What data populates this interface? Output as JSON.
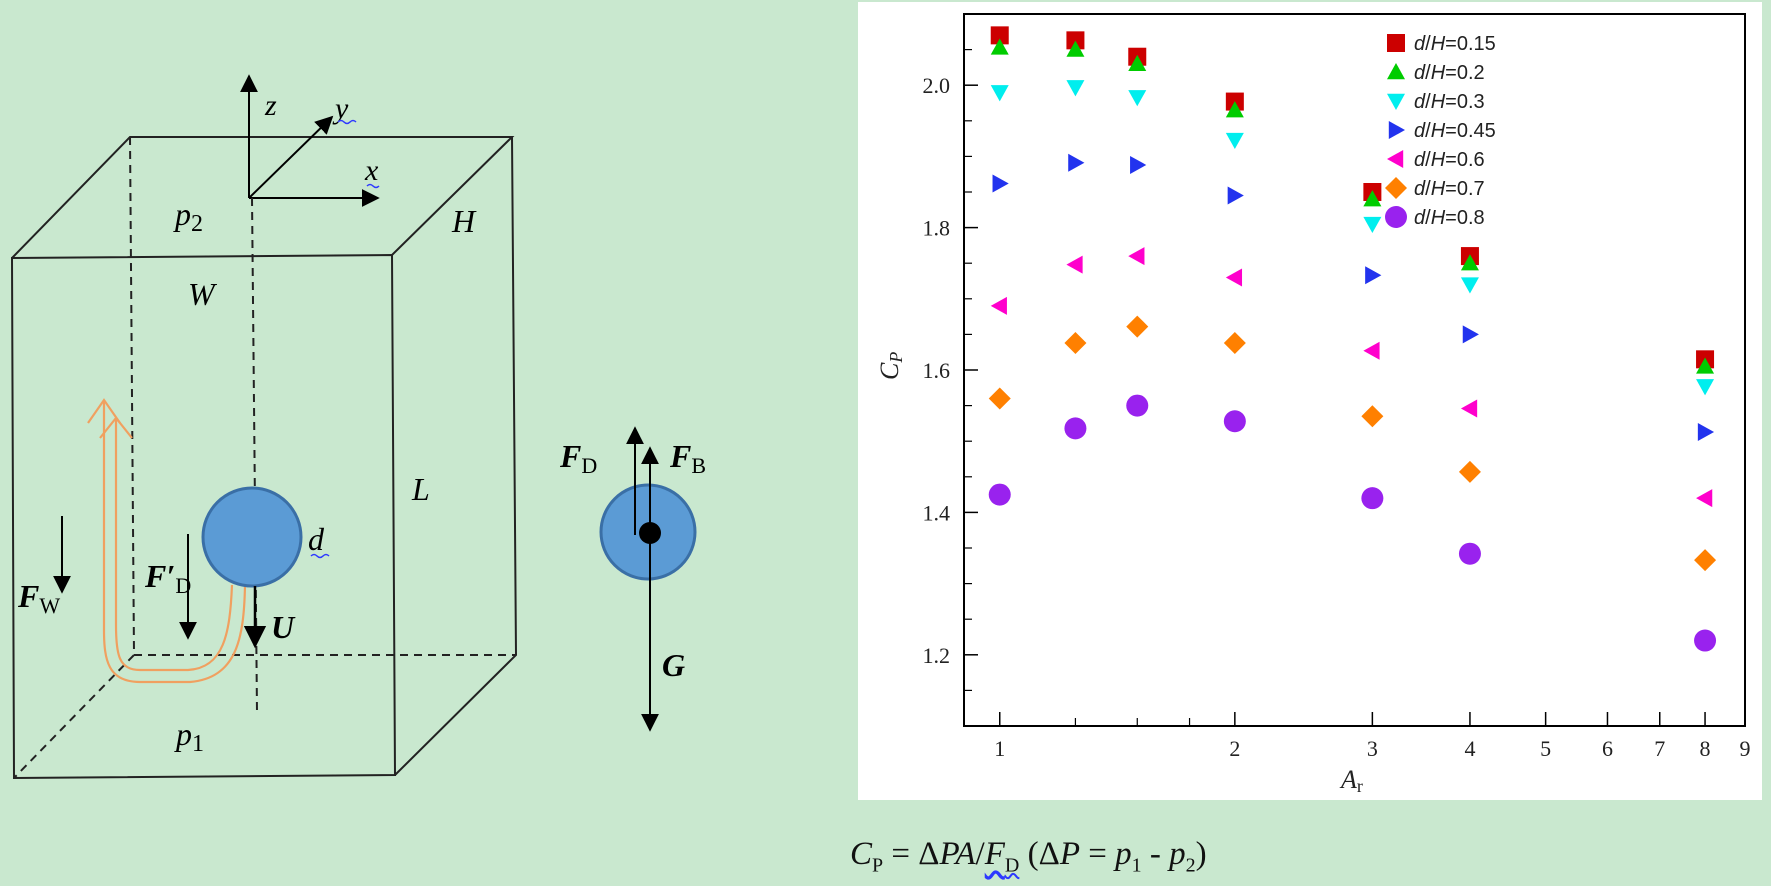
{
  "schematic": {
    "axis_z": "z",
    "axis_y": "y",
    "axis_x": "x",
    "p2": "p",
    "p2_sub": "2",
    "H": "H",
    "W": "W",
    "L": "L",
    "d": "d",
    "p1": "p",
    "p1_sub": "1",
    "Fw": "F",
    "Fw_sub": "W",
    "FD_prime": "F′",
    "FD_prime_sub": "D",
    "U": "U",
    "FD": "F",
    "FD_sub": "D",
    "FB": "F",
    "FB_sub": "B",
    "G": "G"
  },
  "chart_data": {
    "type": "scatter",
    "xlabel": "A",
    "xlabel_sub": "r",
    "ylabel": "C",
    "ylabel_sub": "P",
    "x_scale": "log",
    "xlim": [
      0.9,
      9
    ],
    "ylim": [
      1.1,
      2.1
    ],
    "x_tick_labels": [
      "1",
      "2",
      "3",
      "4",
      "5",
      "6",
      "7",
      "8",
      "9"
    ],
    "y_tick_labels": [
      "1.2",
      "1.4",
      "1.6",
      "1.8",
      "2.0"
    ],
    "legend_position": "top-right",
    "series": [
      {
        "name": "d/H=0.15",
        "marker": "square",
        "color": "#cc0000",
        "x": [
          1,
          1.25,
          1.5,
          2,
          3,
          4,
          8
        ],
        "y": [
          2.07,
          2.063,
          2.04,
          1.977,
          1.85,
          1.76,
          1.615
        ]
      },
      {
        "name": "d/H=0.2",
        "marker": "triangle-up",
        "color": "#00cc00",
        "x": [
          1,
          1.25,
          1.5,
          2,
          3,
          4,
          8
        ],
        "y": [
          2.053,
          2.05,
          2.03,
          1.965,
          1.84,
          1.75,
          1.605
        ]
      },
      {
        "name": "d/H=0.3",
        "marker": "triangle-down",
        "color": "#00eeee",
        "x": [
          1,
          1.25,
          1.5,
          2,
          3,
          4,
          8
        ],
        "y": [
          1.99,
          1.997,
          1.983,
          1.923,
          1.805,
          1.72,
          1.577
        ]
      },
      {
        "name": "d/H=0.45",
        "marker": "triangle-right",
        "color": "#2233ee",
        "x": [
          1,
          1.25,
          1.5,
          2,
          3,
          4,
          8
        ],
        "y": [
          1.862,
          1.891,
          1.888,
          1.845,
          1.733,
          1.65,
          1.513
        ]
      },
      {
        "name": "d/H=0.6",
        "marker": "triangle-left",
        "color": "#ff00cc",
        "x": [
          1,
          1.25,
          1.5,
          2,
          3,
          4,
          8
        ],
        "y": [
          1.69,
          1.748,
          1.76,
          1.73,
          1.627,
          1.546,
          1.42
        ]
      },
      {
        "name": "d/H=0.7",
        "marker": "diamond",
        "color": "#ff8000",
        "x": [
          1,
          1.25,
          1.5,
          2,
          3,
          4,
          8
        ],
        "y": [
          1.56,
          1.638,
          1.661,
          1.638,
          1.535,
          1.457,
          1.333
        ]
      },
      {
        "name": "d/H=0.8",
        "marker": "circle",
        "color": "#9922ee",
        "x": [
          1,
          1.25,
          1.5,
          2,
          3,
          4,
          8
        ],
        "y": [
          1.425,
          1.518,
          1.55,
          1.528,
          1.42,
          1.342,
          1.22
        ]
      }
    ]
  },
  "formula": {
    "cp": "C",
    "cp_sub": "P",
    "eq": " = Δ",
    "pa": "PA",
    "slash": "/",
    "fd": "F",
    "fd_sub": "D",
    "paren_open": " (Δ",
    "p_var": "P",
    "eq2": " = ",
    "p1": "p",
    "p1_sub": "1",
    "minus": " - ",
    "p2": "p",
    "p2_sub": "2",
    "paren_close": ")"
  }
}
